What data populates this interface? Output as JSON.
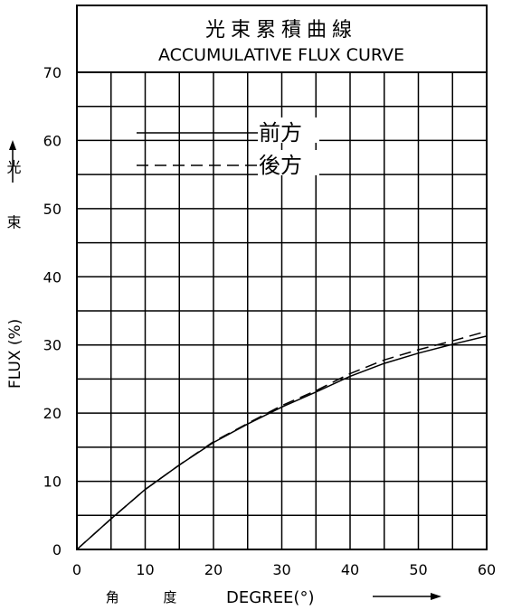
{
  "chart_data": {
    "type": "line",
    "title": "光束累積曲線",
    "subtitle": "ACCUMULATIVE FLUX CURVE",
    "xlabel_cjk": "角 度",
    "xlabel": "DEGREE(°)",
    "ylabel_cjk": "光 束",
    "ylabel": "FLUX (%)",
    "xlim": [
      0,
      60
    ],
    "ylim": [
      0,
      70
    ],
    "x_ticks": [
      "0",
      "10",
      "20",
      "30",
      "40",
      "50",
      "60"
    ],
    "y_ticks": [
      "0",
      "10",
      "20",
      "30",
      "40",
      "50",
      "60",
      "70"
    ],
    "grid": true,
    "series": [
      {
        "name": "前方",
        "style": "solid",
        "x": [
          0,
          5,
          10,
          15,
          20,
          25,
          30,
          35,
          40,
          45,
          50,
          55,
          60
        ],
        "y": [
          0,
          4.5,
          8.8,
          12.4,
          15.7,
          18.4,
          20.9,
          23.1,
          25.4,
          27.3,
          28.8,
          30.1,
          31.3
        ]
      },
      {
        "name": "後方",
        "style": "dashed",
        "x": [
          0,
          5,
          10,
          15,
          20,
          25,
          30,
          35,
          40,
          45,
          50,
          55,
          60
        ],
        "y": [
          0,
          4.5,
          8.8,
          12.4,
          15.8,
          18.5,
          21.1,
          23.3,
          25.8,
          27.8,
          29.3,
          30.6,
          32.0
        ]
      }
    ]
  }
}
